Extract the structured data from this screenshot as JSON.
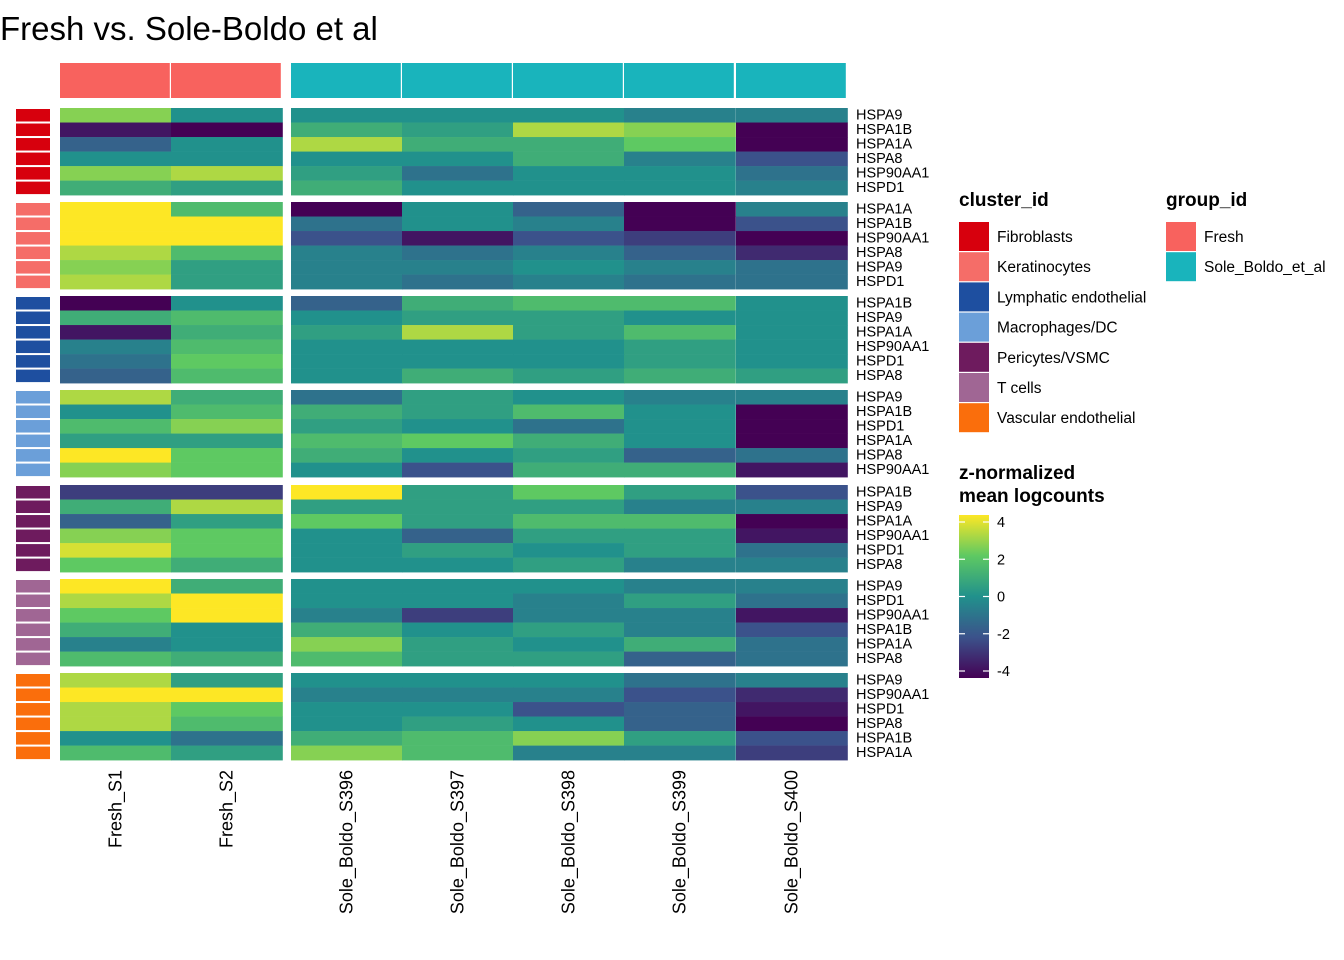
{
  "chart_data": {
    "type": "heatmap",
    "title": "Fresh vs. Sole-Boldo et al",
    "columns": [
      "Fresh_S1",
      "Fresh_S2",
      "Sole_Boldo_S396",
      "Sole_Boldo_S397",
      "Sole_Boldo_S398",
      "Sole_Boldo_S399",
      "Sole_Boldo_S400"
    ],
    "column_groups": [
      "Fresh",
      "Fresh",
      "Sole_Boldo_et_al",
      "Sole_Boldo_et_al",
      "Sole_Boldo_et_al",
      "Sole_Boldo_et_al",
      "Sole_Boldo_et_al"
    ],
    "blocks": [
      {
        "cluster": "Fibroblasts",
        "genes": [
          "HSPA9",
          "HSPA1B",
          "HSPA1A",
          "HSPA8",
          "HSP90AA1",
          "HSPD1"
        ],
        "values": [
          [
            2.5,
            0.0,
            0.0,
            0.0,
            0.0,
            -0.5,
            -0.5
          ],
          [
            -3.5,
            -4.0,
            1.0,
            0.5,
            3.0,
            2.5,
            -4.0
          ],
          [
            -1.5,
            0.0,
            3.0,
            1.0,
            1.0,
            2.0,
            -4.0
          ],
          [
            0.0,
            0.0,
            0.0,
            0.0,
            1.0,
            -0.5,
            -2.0
          ],
          [
            2.5,
            3.0,
            0.5,
            -1.0,
            0.0,
            0.0,
            -1.0
          ],
          [
            1.0,
            0.5,
            1.0,
            0.0,
            0.0,
            0.0,
            -0.5
          ]
        ]
      },
      {
        "cluster": "Keratinocytes",
        "genes": [
          "HSPA1A",
          "HSPA1B",
          "HSP90AA1",
          "HSPA8",
          "HSPA9",
          "HSPD1"
        ],
        "values": [
          [
            4.0,
            1.5,
            -4.0,
            0.0,
            -1.5,
            -4.0,
            -0.5
          ],
          [
            4.0,
            4.0,
            -1.0,
            0.0,
            -0.5,
            -4.0,
            -2.0
          ],
          [
            4.0,
            4.0,
            -2.0,
            -3.5,
            -2.0,
            -2.5,
            -4.0
          ],
          [
            3.0,
            1.5,
            -0.5,
            -1.0,
            -0.5,
            -1.5,
            -3.0
          ],
          [
            2.5,
            0.5,
            -0.5,
            -0.5,
            0.0,
            -0.5,
            -1.0
          ],
          [
            3.0,
            0.5,
            -0.5,
            -1.0,
            -0.5,
            -1.0,
            -1.0
          ]
        ]
      },
      {
        "cluster": "Lymphatic endothelial",
        "genes": [
          "HSPA1B",
          "HSPA9",
          "HSPA1A",
          "HSP90AA1",
          "HSPD1",
          "HSPA8"
        ],
        "values": [
          [
            -4.0,
            0.0,
            -1.5,
            1.0,
            1.5,
            1.5,
            0.0
          ],
          [
            1.0,
            1.5,
            0.0,
            0.5,
            0.5,
            0.0,
            0.0
          ],
          [
            -3.5,
            1.0,
            0.5,
            3.0,
            0.5,
            1.5,
            0.0
          ],
          [
            -0.5,
            1.5,
            0.0,
            0.0,
            0.0,
            0.5,
            0.0
          ],
          [
            -1.0,
            2.0,
            0.0,
            0.0,
            0.0,
            0.5,
            0.0
          ],
          [
            -1.5,
            1.5,
            0.0,
            1.0,
            0.5,
            1.0,
            0.5
          ]
        ]
      },
      {
        "cluster": "Macrophages/DC",
        "genes": [
          "HSPA9",
          "HSPA1B",
          "HSPD1",
          "HSPA1A",
          "HSPA8",
          "HSP90AA1"
        ],
        "values": [
          [
            3.0,
            1.0,
            -1.0,
            0.5,
            0.0,
            -0.5,
            -0.5
          ],
          [
            0.0,
            1.5,
            1.0,
            0.5,
            1.5,
            0.0,
            -4.0
          ],
          [
            1.5,
            2.5,
            0.5,
            0.0,
            -1.0,
            0.0,
            -4.0
          ],
          [
            0.5,
            0.5,
            1.5,
            2.0,
            1.0,
            0.0,
            -4.0
          ],
          [
            4.0,
            2.0,
            1.0,
            0.0,
            0.5,
            -1.5,
            -1.0
          ],
          [
            2.5,
            2.0,
            0.0,
            -2.0,
            1.0,
            1.0,
            -3.5
          ]
        ]
      },
      {
        "cluster": "Pericytes/VSMC",
        "genes": [
          "HSPA1B",
          "HSPA9",
          "HSPA1A",
          "HSP90AA1",
          "HSPD1",
          "HSPA8"
        ],
        "values": [
          [
            -2.5,
            -2.5,
            4.0,
            0.5,
            2.0,
            0.5,
            -2.0
          ],
          [
            1.0,
            3.0,
            0.5,
            0.5,
            0.5,
            -0.5,
            -0.5
          ],
          [
            -1.5,
            0.5,
            2.0,
            0.5,
            1.5,
            1.5,
            -4.0
          ],
          [
            2.5,
            2.0,
            0.0,
            -1.5,
            0.5,
            0.5,
            -3.5
          ],
          [
            3.5,
            2.0,
            0.0,
            0.5,
            0.0,
            0.5,
            -1.0
          ],
          [
            2.0,
            1.0,
            0.0,
            0.0,
            0.5,
            -0.5,
            -0.5
          ]
        ]
      },
      {
        "cluster": "T cells",
        "genes": [
          "HSPA9",
          "HSPD1",
          "HSP90AA1",
          "HSPA1B",
          "HSPA1A",
          "HSPA8"
        ],
        "values": [
          [
            4.0,
            1.0,
            0.0,
            0.0,
            0.0,
            -0.5,
            -0.5
          ],
          [
            3.0,
            4.0,
            0.0,
            0.0,
            -0.5,
            0.5,
            -1.0
          ],
          [
            2.0,
            4.0,
            -0.5,
            -2.5,
            -0.5,
            -0.5,
            -3.5
          ],
          [
            1.0,
            0.0,
            1.0,
            0.0,
            0.5,
            -0.5,
            -2.0
          ],
          [
            -0.5,
            0.0,
            2.5,
            0.5,
            0.0,
            1.0,
            -1.0
          ],
          [
            1.5,
            1.0,
            1.5,
            0.5,
            0.5,
            -1.5,
            -1.0
          ]
        ]
      },
      {
        "cluster": "Vascular endothelial",
        "genes": [
          "HSPA9",
          "HSP90AA1",
          "HSPD1",
          "HSPA8",
          "HSPA1B",
          "HSPA1A"
        ],
        "values": [
          [
            3.0,
            0.5,
            0.0,
            0.0,
            0.0,
            -1.0,
            -0.5
          ],
          [
            4.0,
            4.0,
            -0.5,
            -0.5,
            -0.5,
            -2.0,
            -3.0
          ],
          [
            3.0,
            2.0,
            0.0,
            0.0,
            -2.0,
            -1.5,
            -3.5
          ],
          [
            3.0,
            1.5,
            0.0,
            0.5,
            0.0,
            -1.5,
            -4.0
          ],
          [
            0.0,
            -1.0,
            1.0,
            1.5,
            2.5,
            0.5,
            -2.0
          ],
          [
            1.5,
            0.5,
            2.5,
            1.5,
            -0.5,
            -0.5,
            -2.5
          ]
        ]
      }
    ],
    "legends": {
      "cluster_title": "cluster_id",
      "clusters": [
        {
          "label": "Fibroblasts",
          "color": "#D7000D"
        },
        {
          "label": "Keratinocytes",
          "color": "#F56D68"
        },
        {
          "label": "Lymphatic endothelial",
          "color": "#1E4FA0"
        },
        {
          "label": "Macrophages/DC",
          "color": "#6B9FD9"
        },
        {
          "label": "Pericytes/VSMC",
          "color": "#6E1B5E"
        },
        {
          "label": "T cells",
          "color": "#A06694"
        },
        {
          "label": "Vascular endothelial",
          "color": "#FA6E0C"
        }
      ],
      "group_title": "group_id",
      "groups": [
        {
          "label": "Fresh",
          "color": "#F8625E"
        },
        {
          "label": "Sole_Boldo_et_al",
          "color": "#19B4BC"
        }
      ],
      "scale_title": [
        "z-normalized",
        "mean logcounts"
      ],
      "scale_ticks": [
        4,
        2,
        0,
        -2,
        -4
      ],
      "scale_range": [
        -4,
        4
      ],
      "scale_colors": [
        "#440154",
        "#3B528B",
        "#21918C",
        "#5EC962",
        "#FDE725"
      ]
    }
  }
}
